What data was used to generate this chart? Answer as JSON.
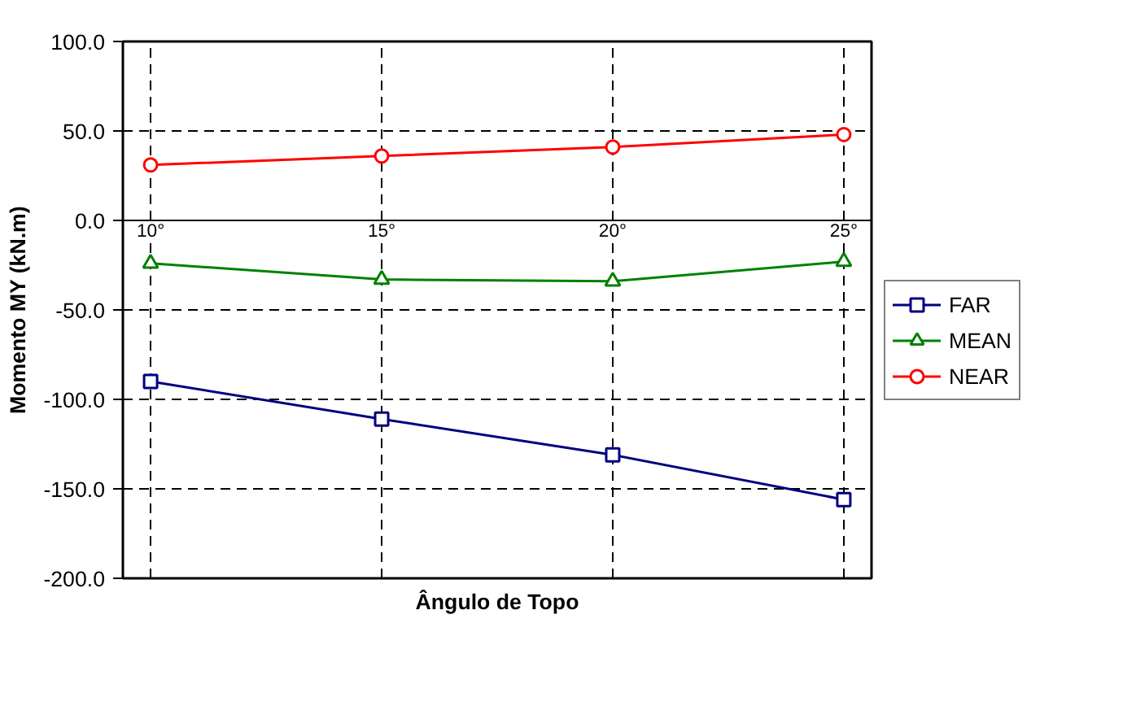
{
  "chart_data": {
    "type": "line",
    "xlabel": "Ângulo de Topo",
    "ylabel": "Momento MY (kN.m)",
    "categories": [
      "10°",
      "15°",
      "20°",
      "25°"
    ],
    "series": [
      {
        "name": "FAR",
        "color": "#000080",
        "marker": "square",
        "values": [
          -90,
          -111,
          -131,
          -156
        ]
      },
      {
        "name": "MEAN",
        "color": "#008000",
        "marker": "triangle",
        "values": [
          -24,
          -33,
          -34,
          -23
        ]
      },
      {
        "name": "NEAR",
        "color": "#ff0000",
        "marker": "circle",
        "values": [
          31,
          36,
          41,
          48
        ]
      }
    ],
    "ylim": [
      -200,
      100
    ],
    "yticks": [
      {
        "value": 100,
        "label": "100.0"
      },
      {
        "value": 50,
        "label": "50.0"
      },
      {
        "value": 0,
        "label": "0.0"
      },
      {
        "value": -50,
        "label": "-50.0"
      },
      {
        "value": -100,
        "label": "-100.0"
      },
      {
        "value": -150,
        "label": "-150.0"
      },
      {
        "value": -200,
        "label": "-200.0"
      }
    ],
    "grid": true,
    "legend": "right",
    "line_style": "solid"
  }
}
